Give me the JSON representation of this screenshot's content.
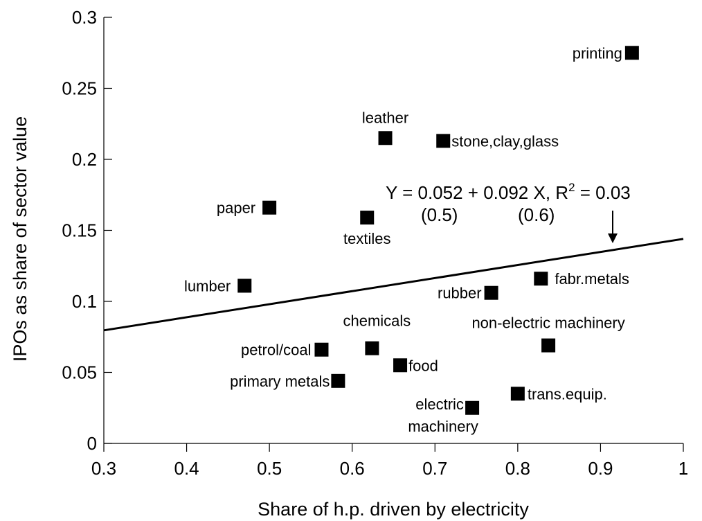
{
  "chart_data": {
    "type": "scatter",
    "title": "",
    "xlabel": "Share of h.p. driven by electricity",
    "ylabel": "IPOs as share of sector value",
    "xlim": [
      0.3,
      1.0
    ],
    "ylim": [
      0,
      0.3
    ],
    "xticks": [
      0.3,
      0.4,
      0.5,
      0.6,
      0.7,
      0.8,
      0.9,
      1.0
    ],
    "xtick_labels": [
      "0.3",
      "0.4",
      "0.5",
      "0.6",
      "0.7",
      "0.8",
      "0.9",
      "1"
    ],
    "yticks": [
      0,
      0.05,
      0.1,
      0.15,
      0.2,
      0.25,
      0.3
    ],
    "ytick_labels": [
      "0",
      "0.05",
      "0.1",
      "0.15",
      "0.2",
      "0.25",
      "0.3"
    ],
    "grid": false,
    "points": [
      {
        "label": "printing",
        "x": 0.938,
        "y": 0.275
      },
      {
        "label": "leather",
        "x": 0.64,
        "y": 0.215
      },
      {
        "label": "stone,clay,glass",
        "x": 0.71,
        "y": 0.213
      },
      {
        "label": "paper",
        "x": 0.5,
        "y": 0.166
      },
      {
        "label": "textiles",
        "x": 0.618,
        "y": 0.159
      },
      {
        "label": "lumber",
        "x": 0.47,
        "y": 0.111
      },
      {
        "label": "fabr.metals",
        "x": 0.828,
        "y": 0.116
      },
      {
        "label": "rubber",
        "x": 0.768,
        "y": 0.106
      },
      {
        "label": "non-electric machinery",
        "x": 0.837,
        "y": 0.069
      },
      {
        "label": "chemicals",
        "x": 0.624,
        "y": 0.067
      },
      {
        "label": "petrol/coal",
        "x": 0.563,
        "y": 0.066
      },
      {
        "label": "food",
        "x": 0.658,
        "y": 0.055
      },
      {
        "label": "primary metals",
        "x": 0.583,
        "y": 0.044
      },
      {
        "label": "trans.equip.",
        "x": 0.8,
        "y": 0.035
      },
      {
        "label": "electric machinery",
        "x": 0.745,
        "y": 0.025
      }
    ],
    "trendline": {
      "intercept": 0.052,
      "slope": 0.092
    },
    "annotation": {
      "equation": "Y = 0.052 + 0.092 X, R",
      "superscript": "2",
      "r2_suffix": " = 0.03",
      "se_intercept": "(0.5)",
      "se_slope": "(0.6)"
    }
  }
}
